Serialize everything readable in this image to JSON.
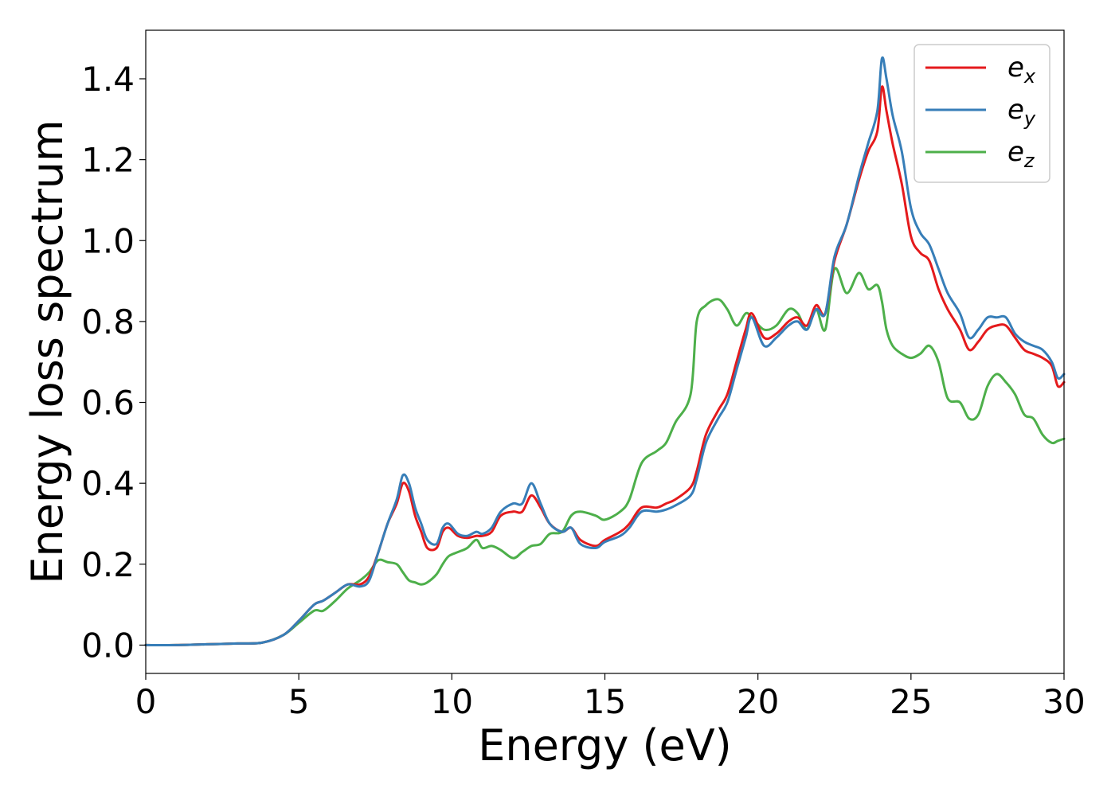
{
  "chart_data": {
    "type": "line",
    "title": "",
    "xlabel": "Energy (eV)",
    "ylabel": "Energy loss spectrum",
    "xlim": [
      0,
      30
    ],
    "ylim": [
      -0.07,
      1.52
    ],
    "xticks": [
      0,
      5,
      10,
      15,
      20,
      25,
      30
    ],
    "xtick_labels": [
      "0",
      "5",
      "10",
      "15",
      "20",
      "25",
      "30"
    ],
    "yticks": [
      0.0,
      0.2,
      0.4,
      0.6,
      0.8,
      1.0,
      1.2,
      1.4
    ],
    "ytick_labels": [
      "0.0",
      "0.2",
      "0.4",
      "0.6",
      "0.8",
      "1.0",
      "1.2",
      "1.4"
    ],
    "grid": false,
    "legend_position": "top-right",
    "series": [
      {
        "name": "e_x",
        "legend_base": "e",
        "legend_sub": "x",
        "color": "#e41a1c",
        "x": [
          0,
          1,
          2,
          3,
          3.8,
          4.5,
          5.0,
          5.5,
          5.8,
          6.2,
          6.6,
          7.0,
          7.3,
          7.6,
          7.9,
          8.2,
          8.4,
          8.6,
          8.8,
          9.0,
          9.2,
          9.5,
          9.7,
          9.9,
          10.2,
          10.5,
          10.8,
          11.0,
          11.3,
          11.6,
          12.0,
          12.3,
          12.6,
          12.9,
          13.2,
          13.6,
          13.9,
          14.2,
          14.7,
          15.0,
          15.5,
          15.8,
          16.2,
          16.7,
          17.0,
          17.3,
          17.8,
          18.0,
          18.3,
          18.7,
          19.0,
          19.3,
          19.6,
          19.8,
          20.2,
          20.6,
          21.0,
          21.3,
          21.6,
          21.9,
          22.2,
          22.5,
          22.9,
          23.3,
          23.6,
          23.9,
          24.05,
          24.2,
          24.4,
          24.7,
          25.0,
          25.3,
          25.6,
          25.9,
          26.2,
          26.6,
          26.9,
          27.2,
          27.5,
          27.8,
          28.1,
          28.4,
          28.7,
          29.0,
          29.3,
          29.6,
          29.8,
          30.0
        ],
        "values": [
          0.0,
          0.0,
          0.002,
          0.004,
          0.006,
          0.025,
          0.06,
          0.1,
          0.11,
          0.13,
          0.15,
          0.15,
          0.17,
          0.23,
          0.3,
          0.35,
          0.4,
          0.38,
          0.32,
          0.28,
          0.24,
          0.24,
          0.28,
          0.29,
          0.27,
          0.265,
          0.27,
          0.27,
          0.28,
          0.32,
          0.33,
          0.33,
          0.37,
          0.34,
          0.3,
          0.28,
          0.29,
          0.26,
          0.245,
          0.26,
          0.28,
          0.3,
          0.34,
          0.34,
          0.35,
          0.36,
          0.39,
          0.43,
          0.52,
          0.58,
          0.62,
          0.7,
          0.78,
          0.82,
          0.76,
          0.77,
          0.8,
          0.81,
          0.79,
          0.84,
          0.82,
          0.95,
          1.04,
          1.15,
          1.22,
          1.27,
          1.38,
          1.32,
          1.24,
          1.14,
          1.01,
          0.97,
          0.95,
          0.88,
          0.83,
          0.78,
          0.73,
          0.75,
          0.78,
          0.79,
          0.79,
          0.76,
          0.73,
          0.72,
          0.71,
          0.69,
          0.64,
          0.65
        ]
      },
      {
        "name": "e_y",
        "legend_base": "e",
        "legend_sub": "y",
        "color": "#377eb8",
        "x": [
          0,
          1,
          2,
          3,
          3.8,
          4.5,
          5.0,
          5.5,
          5.8,
          6.2,
          6.6,
          7.0,
          7.3,
          7.6,
          7.9,
          8.2,
          8.4,
          8.6,
          8.8,
          9.0,
          9.2,
          9.5,
          9.7,
          9.9,
          10.2,
          10.5,
          10.8,
          11.0,
          11.3,
          11.6,
          12.0,
          12.3,
          12.6,
          12.9,
          13.2,
          13.6,
          13.9,
          14.2,
          14.7,
          15.0,
          15.5,
          15.8,
          16.2,
          16.7,
          17.0,
          17.3,
          17.8,
          18.0,
          18.3,
          18.7,
          19.0,
          19.3,
          19.6,
          19.8,
          20.2,
          20.6,
          21.0,
          21.3,
          21.6,
          21.9,
          22.2,
          22.5,
          22.9,
          23.3,
          23.6,
          23.9,
          24.05,
          24.2,
          24.4,
          24.7,
          25.0,
          25.3,
          25.6,
          25.9,
          26.2,
          26.6,
          26.9,
          27.2,
          27.5,
          27.8,
          28.1,
          28.4,
          28.7,
          29.0,
          29.3,
          29.6,
          29.8,
          30.0
        ],
        "values": [
          0.0,
          0.0,
          0.002,
          0.004,
          0.006,
          0.025,
          0.06,
          0.1,
          0.11,
          0.13,
          0.15,
          0.145,
          0.16,
          0.23,
          0.3,
          0.36,
          0.42,
          0.4,
          0.34,
          0.3,
          0.26,
          0.25,
          0.29,
          0.3,
          0.275,
          0.27,
          0.28,
          0.275,
          0.29,
          0.33,
          0.35,
          0.35,
          0.4,
          0.35,
          0.3,
          0.28,
          0.29,
          0.25,
          0.24,
          0.255,
          0.27,
          0.29,
          0.33,
          0.33,
          0.335,
          0.345,
          0.37,
          0.41,
          0.5,
          0.56,
          0.6,
          0.68,
          0.76,
          0.81,
          0.74,
          0.76,
          0.79,
          0.8,
          0.78,
          0.83,
          0.82,
          0.96,
          1.04,
          1.16,
          1.24,
          1.32,
          1.45,
          1.4,
          1.31,
          1.22,
          1.08,
          1.02,
          0.99,
          0.93,
          0.87,
          0.82,
          0.76,
          0.78,
          0.81,
          0.81,
          0.81,
          0.77,
          0.75,
          0.74,
          0.73,
          0.7,
          0.66,
          0.67
        ]
      },
      {
        "name": "e_z",
        "legend_base": "e",
        "legend_sub": "z",
        "color": "#4daf4a",
        "x": [
          0,
          1,
          2,
          3,
          3.8,
          4.5,
          5.0,
          5.5,
          5.8,
          6.2,
          6.6,
          7.0,
          7.3,
          7.6,
          7.9,
          8.2,
          8.4,
          8.6,
          8.8,
          9.0,
          9.2,
          9.5,
          9.7,
          9.9,
          10.2,
          10.5,
          10.8,
          11.0,
          11.3,
          11.6,
          12.0,
          12.3,
          12.6,
          12.9,
          13.2,
          13.6,
          13.9,
          14.2,
          14.7,
          15.0,
          15.5,
          15.8,
          16.2,
          16.7,
          17.0,
          17.3,
          17.8,
          18.0,
          18.3,
          18.7,
          19.0,
          19.3,
          19.6,
          19.8,
          20.2,
          20.6,
          21.0,
          21.3,
          21.6,
          21.9,
          22.2,
          22.5,
          22.9,
          23.3,
          23.6,
          23.9,
          24.05,
          24.2,
          24.4,
          24.7,
          25.0,
          25.3,
          25.6,
          25.9,
          26.2,
          26.6,
          26.9,
          27.2,
          27.5,
          27.8,
          28.1,
          28.4,
          28.7,
          29.0,
          29.3,
          29.6,
          29.8,
          30.0
        ],
        "values": [
          0.0,
          0.0,
          0.002,
          0.004,
          0.006,
          0.025,
          0.055,
          0.085,
          0.085,
          0.11,
          0.14,
          0.16,
          0.18,
          0.21,
          0.205,
          0.2,
          0.18,
          0.16,
          0.155,
          0.15,
          0.155,
          0.175,
          0.2,
          0.22,
          0.23,
          0.24,
          0.26,
          0.24,
          0.245,
          0.235,
          0.215,
          0.23,
          0.245,
          0.25,
          0.275,
          0.28,
          0.32,
          0.33,
          0.32,
          0.31,
          0.33,
          0.36,
          0.45,
          0.48,
          0.5,
          0.55,
          0.62,
          0.8,
          0.84,
          0.855,
          0.83,
          0.79,
          0.82,
          0.81,
          0.78,
          0.79,
          0.83,
          0.82,
          0.78,
          0.83,
          0.78,
          0.93,
          0.87,
          0.92,
          0.88,
          0.89,
          0.85,
          0.78,
          0.74,
          0.72,
          0.71,
          0.72,
          0.74,
          0.7,
          0.61,
          0.6,
          0.56,
          0.57,
          0.64,
          0.67,
          0.65,
          0.62,
          0.57,
          0.56,
          0.52,
          0.5,
          0.505,
          0.51
        ]
      }
    ]
  }
}
